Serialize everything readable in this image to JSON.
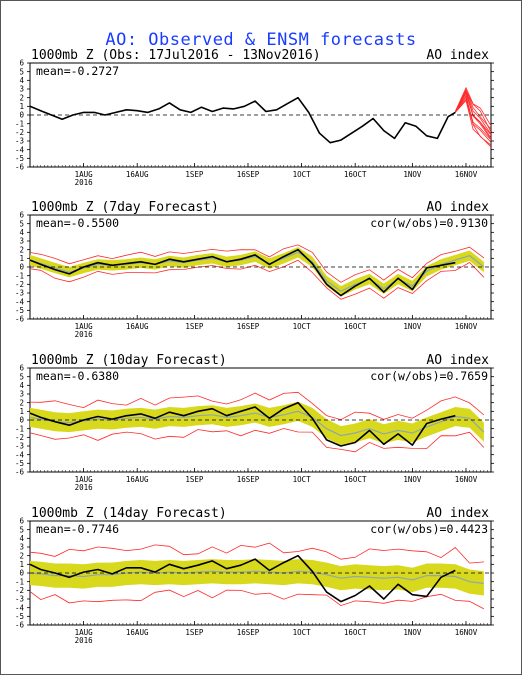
{
  "title": "AO: Observed & ENSM forecasts",
  "colors": {
    "observed": "#000000",
    "ensemble_members": "#ff2a2a",
    "ensemble_spread": "#d8d81c",
    "ensemble_mean": "#8ea8b0",
    "title": "#1a3cff"
  },
  "chart_data": [
    {
      "type": "line",
      "title": "1000mb Z (Obs: 17Jul2016 - 13Nov2016)",
      "index_label": "AO index",
      "mean_label": "mean=-0.2727",
      "cor_label": "",
      "x_ticks": [
        "1AUG",
        "16AUG",
        "1SEP",
        "16SEP",
        "1OCT",
        "16OCT",
        "1NOV",
        "16NOV"
      ],
      "year_label": "2016",
      "x_range": [
        "17Jul2016",
        "23Nov2016"
      ],
      "ylim": [
        -6,
        6
      ],
      "y_ticks": [
        -6,
        -5,
        -4,
        -3,
        -2,
        -1,
        0,
        1,
        2,
        3,
        4,
        5,
        6
      ],
      "grid": false,
      "observed": {
        "x": [
          "17Jul2016",
          "20Jul2016",
          "23Jul2016",
          "26Jul2016",
          "29Jul2016",
          "1Aug2016",
          "4Aug2016",
          "7Aug2016",
          "10Aug2016",
          "13Aug2016",
          "16Aug2016",
          "19Aug2016",
          "22Aug2016",
          "25Aug2016",
          "28Aug2016",
          "31Aug2016",
          "3Sep2016",
          "6Sep2016",
          "9Sep2016",
          "12Sep2016",
          "15Sep2016",
          "18Sep2016",
          "21Sep2016",
          "24Sep2016",
          "27Sep2016",
          "30Sep2016",
          "3Oct2016",
          "6Oct2016",
          "9Oct2016",
          "12Oct2016",
          "15Oct2016",
          "18Oct2016",
          "21Oct2016",
          "24Oct2016",
          "27Oct2016",
          "30Oct2016",
          "2Nov2016",
          "5Nov2016",
          "8Nov2016",
          "11Nov2016",
          "13Nov2016"
        ],
        "y": [
          1.0,
          0.5,
          0.0,
          -0.5,
          0.0,
          0.3,
          0.3,
          0.0,
          0.3,
          0.6,
          0.5,
          0.3,
          0.7,
          1.4,
          0.6,
          0.3,
          0.9,
          0.4,
          0.8,
          0.7,
          1.0,
          1.6,
          0.4,
          0.6,
          1.3,
          2.0,
          0.3,
          -2.1,
          -3.2,
          -2.9,
          -2.1,
          -1.3,
          -0.4,
          -1.8,
          -2.7,
          -0.9,
          -1.3,
          -2.4,
          -2.7,
          -0.2,
          0.3
        ]
      },
      "ensemble_members_forecast": {
        "x": [
          "13Nov2016",
          "16Nov2016",
          "18Nov2016",
          "20Nov2016",
          "23Nov2016"
        ],
        "y_min": [
          0.3,
          1.8,
          -1.5,
          -2.5,
          -3.6
        ],
        "y_max": [
          0.4,
          3.0,
          1.5,
          0.5,
          -1.5
        ]
      }
    },
    {
      "type": "line",
      "title": "1000mb Z (7day Forecast)",
      "index_label": "AO index",
      "mean_label": "mean=-0.5500",
      "cor_label": "cor(w/obs)=0.9130",
      "x_ticks": [
        "1AUG",
        "16AUG",
        "1SEP",
        "16SEP",
        "1OCT",
        "16OCT",
        "1NOV",
        "16NOV"
      ],
      "year_label": "2016",
      "x_range": [
        "17Jul2016",
        "23Nov2016"
      ],
      "ylim": [
        -6,
        6
      ],
      "y_ticks": [
        -6,
        -5,
        -4,
        -3,
        -2,
        -1,
        0,
        1,
        2,
        3,
        4,
        5,
        6
      ],
      "grid": false,
      "observed": {
        "x": [
          "17Jul2016",
          "20Jul2016",
          "24Jul2016",
          "28Jul2016",
          "1Aug2016",
          "5Aug2016",
          "9Aug2016",
          "13Aug2016",
          "17Aug2016",
          "21Aug2016",
          "25Aug2016",
          "29Aug2016",
          "2Sep2016",
          "6Sep2016",
          "10Sep2016",
          "14Sep2016",
          "18Sep2016",
          "22Sep2016",
          "26Sep2016",
          "30Sep2016",
          "4Oct2016",
          "8Oct2016",
          "12Oct2016",
          "16Oct2016",
          "20Oct2016",
          "24Oct2016",
          "28Oct2016",
          "1Nov2016",
          "5Nov2016",
          "9Nov2016",
          "13Nov2016"
        ],
        "y": [
          0.8,
          0.3,
          -0.3,
          -0.8,
          0.0,
          0.5,
          0.2,
          0.4,
          0.6,
          0.3,
          0.9,
          0.6,
          0.9,
          1.2,
          0.6,
          0.9,
          1.4,
          0.3,
          1.2,
          2.0,
          0.4,
          -2.0,
          -3.3,
          -2.2,
          -1.3,
          -2.9,
          -1.3,
          -2.6,
          -0.1,
          0.2,
          0.5
        ]
      },
      "ensemble_mean_forecast": {
        "x": [
          "17Jul2016",
          "20Jul2016",
          "24Jul2016",
          "28Jul2016",
          "1Aug2016",
          "5Aug2016",
          "9Aug2016",
          "13Aug2016",
          "17Aug2016",
          "21Aug2016",
          "25Aug2016",
          "29Aug2016",
          "2Sep2016",
          "6Sep2016",
          "10Sep2016",
          "14Sep2016",
          "18Sep2016",
          "22Sep2016",
          "26Sep2016",
          "30Sep2016",
          "4Oct2016",
          "8Oct2016",
          "12Oct2016",
          "16Oct2016",
          "20Oct2016",
          "24Oct2016",
          "28Oct2016",
          "1Nov2016",
          "5Nov2016",
          "9Nov2016",
          "13Nov2016",
          "17Nov2016",
          "21Nov2016"
        ],
        "y": [
          0.8,
          0.4,
          -0.1,
          -0.6,
          -0.1,
          0.3,
          0.2,
          0.3,
          0.5,
          0.3,
          0.7,
          0.5,
          0.8,
          1.0,
          0.6,
          0.8,
          1.2,
          0.4,
          1.0,
          1.7,
          0.6,
          -1.6,
          -2.8,
          -2.0,
          -1.4,
          -2.5,
          -1.4,
          -2.2,
          -0.5,
          0.3,
          0.8,
          1.3,
          0.0
        ]
      },
      "ensemble_spread_halfwidth": 0.6,
      "ensemble_members_envelope_halfwidth": 1.0
    },
    {
      "type": "line",
      "title": "1000mb Z (10day Forecast)",
      "index_label": "AO index",
      "mean_label": "mean=-0.6380",
      "cor_label": "cor(w/obs)=0.7659",
      "x_ticks": [
        "1AUG",
        "16AUG",
        "1SEP",
        "16SEP",
        "1OCT",
        "16OCT",
        "1NOV",
        "16NOV"
      ],
      "year_label": "2016",
      "x_range": [
        "17Jul2016",
        "23Nov2016"
      ],
      "ylim": [
        -6,
        6
      ],
      "y_ticks": [
        -6,
        -5,
        -4,
        -3,
        -2,
        -1,
        0,
        1,
        2,
        3,
        4,
        5,
        6
      ],
      "grid": false,
      "observed": {
        "x": [
          "17Jul2016",
          "20Jul2016",
          "24Jul2016",
          "28Jul2016",
          "1Aug2016",
          "5Aug2016",
          "9Aug2016",
          "13Aug2016",
          "17Aug2016",
          "21Aug2016",
          "25Aug2016",
          "29Aug2016",
          "2Sep2016",
          "6Sep2016",
          "10Sep2016",
          "14Sep2016",
          "18Sep2016",
          "22Sep2016",
          "26Sep2016",
          "30Sep2016",
          "4Oct2016",
          "8Oct2016",
          "12Oct2016",
          "16Oct2016",
          "20Oct2016",
          "24Oct2016",
          "28Oct2016",
          "1Nov2016",
          "5Nov2016",
          "9Nov2016",
          "13Nov2016"
        ],
        "y": [
          0.8,
          0.3,
          -0.2,
          -0.6,
          0.0,
          0.4,
          0.1,
          0.5,
          0.7,
          0.2,
          0.9,
          0.5,
          1.0,
          1.3,
          0.5,
          1.0,
          1.5,
          0.2,
          1.3,
          2.0,
          0.2,
          -2.3,
          -3.0,
          -2.6,
          -1.2,
          -2.8,
          -1.6,
          -2.9,
          -0.4,
          0.1,
          0.5
        ]
      },
      "ensemble_mean_forecast": {
        "x": [
          "17Jul2016",
          "20Jul2016",
          "24Jul2016",
          "28Jul2016",
          "1Aug2016",
          "5Aug2016",
          "9Aug2016",
          "13Aug2016",
          "17Aug2016",
          "21Aug2016",
          "25Aug2016",
          "29Aug2016",
          "2Sep2016",
          "6Sep2016",
          "10Sep2016",
          "14Sep2016",
          "18Sep2016",
          "22Sep2016",
          "26Sep2016",
          "30Sep2016",
          "4Oct2016",
          "8Oct2016",
          "12Oct2016",
          "16Oct2016",
          "20Oct2016",
          "24Oct2016",
          "28Oct2016",
          "1Nov2016",
          "5Nov2016",
          "9Nov2016",
          "13Nov2016",
          "17Nov2016",
          "21Nov2016"
        ],
        "y": [
          0.3,
          0.1,
          -0.2,
          -0.3,
          -0.1,
          0.1,
          0.0,
          0.2,
          0.3,
          0.1,
          0.4,
          0.3,
          0.5,
          0.6,
          0.3,
          0.5,
          0.8,
          0.3,
          0.6,
          1.0,
          0.3,
          -1.0,
          -1.8,
          -1.5,
          -1.0,
          -1.6,
          -1.2,
          -1.5,
          -0.8,
          -0.2,
          0.4,
          0.2,
          -1.4
        ]
      },
      "ensemble_spread_halfwidth": 1.1,
      "ensemble_members_envelope_halfwidth": 2.0
    },
    {
      "type": "line",
      "title": "1000mb Z (14day Forecast)",
      "index_label": "AO index",
      "mean_label": "mean=-0.7746",
      "cor_label": "cor(w/obs)=0.4423",
      "x_ticks": [
        "1AUG",
        "16AUG",
        "1SEP",
        "16SEP",
        "1OCT",
        "16OCT",
        "1NOV",
        "16NOV"
      ],
      "year_label": "2016",
      "x_range": [
        "17Jul2016",
        "23Nov2016"
      ],
      "ylim": [
        -6,
        6
      ],
      "y_ticks": [
        -6,
        -5,
        -4,
        -3,
        -2,
        -1,
        0,
        1,
        2,
        3,
        4,
        5,
        6
      ],
      "grid": false,
      "observed": {
        "x": [
          "17Jul2016",
          "20Jul2016",
          "24Jul2016",
          "28Jul2016",
          "1Aug2016",
          "5Aug2016",
          "9Aug2016",
          "13Aug2016",
          "17Aug2016",
          "21Aug2016",
          "25Aug2016",
          "29Aug2016",
          "2Sep2016",
          "6Sep2016",
          "10Sep2016",
          "14Sep2016",
          "18Sep2016",
          "22Sep2016",
          "26Sep2016",
          "30Sep2016",
          "4Oct2016",
          "8Oct2016",
          "12Oct2016",
          "16Oct2016",
          "20Oct2016",
          "24Oct2016",
          "28Oct2016",
          "1Nov2016",
          "5Nov2016",
          "9Nov2016",
          "13Nov2016"
        ],
        "y": [
          1.0,
          0.4,
          0.0,
          -0.5,
          0.1,
          0.4,
          -0.1,
          0.6,
          0.6,
          0.1,
          1.0,
          0.5,
          0.9,
          1.4,
          0.5,
          0.9,
          1.6,
          0.3,
          1.2,
          2.0,
          0.2,
          -2.2,
          -3.3,
          -2.6,
          -1.5,
          -3.0,
          -1.3,
          -2.5,
          -2.7,
          -0.5,
          0.3
        ]
      },
      "ensemble_mean_forecast": {
        "x": [
          "17Jul2016",
          "20Jul2016",
          "24Jul2016",
          "28Jul2016",
          "1Aug2016",
          "5Aug2016",
          "9Aug2016",
          "13Aug2016",
          "17Aug2016",
          "21Aug2016",
          "25Aug2016",
          "29Aug2016",
          "2Sep2016",
          "6Sep2016",
          "10Sep2016",
          "14Sep2016",
          "18Sep2016",
          "22Sep2016",
          "26Sep2016",
          "30Sep2016",
          "4Oct2016",
          "8Oct2016",
          "12Oct2016",
          "16Oct2016",
          "20Oct2016",
          "24Oct2016",
          "28Oct2016",
          "1Nov2016",
          "5Nov2016",
          "9Nov2016",
          "13Nov2016",
          "17Nov2016",
          "21Nov2016"
        ],
        "y": [
          0.0,
          -0.1,
          -0.3,
          -0.3,
          -0.4,
          -0.2,
          -0.2,
          0.0,
          0.1,
          0.0,
          0.1,
          0.0,
          0.1,
          0.2,
          0.1,
          0.1,
          0.2,
          0.1,
          0.0,
          0.2,
          0.1,
          -0.2,
          -0.6,
          -0.4,
          -0.5,
          -0.6,
          -0.5,
          -0.8,
          -0.3,
          -0.3,
          -0.4,
          -1.0,
          -1.2
        ]
      },
      "ensemble_spread_halfwidth": 1.4,
      "ensemble_members_envelope_halfwidth": 2.7
    }
  ]
}
